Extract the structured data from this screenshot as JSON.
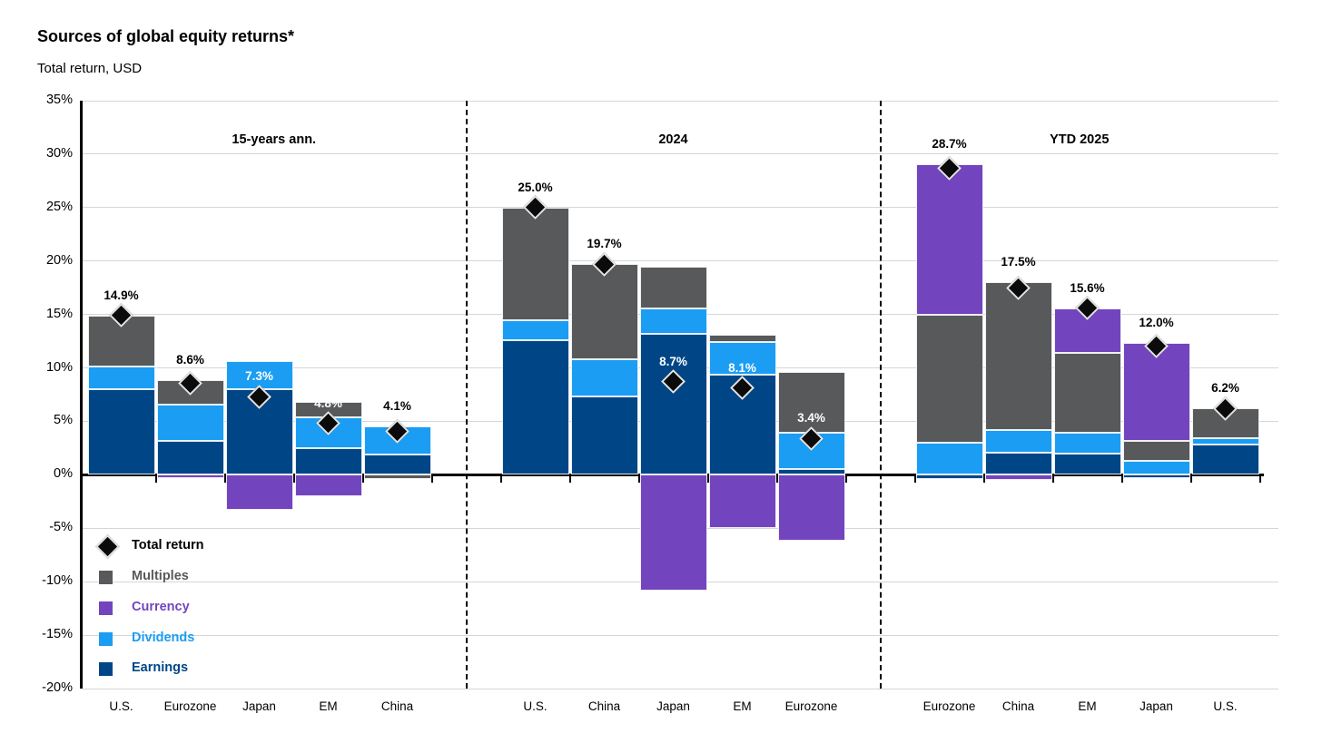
{
  "header": {
    "title": "Sources of global equity returns*",
    "subtitle": "Total return, USD"
  },
  "chart_data": {
    "type": "bar",
    "stacked": true,
    "title": "Sources of global equity returns*",
    "subtitle": "Total return, USD",
    "ylabel": "Total return, USD (%)",
    "ylim": [
      -20,
      35
    ],
    "grid": true,
    "legend_position": "bottom-left",
    "yticks": [
      {
        "label": "35%",
        "value": 35
      },
      {
        "label": "30%",
        "value": 30
      },
      {
        "label": "25%",
        "value": 25
      },
      {
        "label": "20%",
        "value": 20
      },
      {
        "label": "15%",
        "value": 15
      },
      {
        "label": "10%",
        "value": 10
      },
      {
        "label": "5%",
        "value": 5
      },
      {
        "label": "0%",
        "value": 0
      },
      {
        "label": "-5%",
        "value": -5
      },
      {
        "label": "-10%",
        "value": -10
      },
      {
        "label": "-15%",
        "value": -15
      },
      {
        "label": "-20%",
        "value": -20
      }
    ],
    "series_order": [
      "earnings",
      "dividends",
      "multiples",
      "currency"
    ],
    "series_colors": {
      "earnings": "#004687",
      "dividends": "#1B9DF3",
      "multiples": "#58595B",
      "currency": "#7245BE"
    },
    "legend": [
      {
        "name": "Total return",
        "marker": "diamond",
        "color": "#0b0b0b",
        "text_color": "#000000"
      },
      {
        "name": "Multiples",
        "marker": "square",
        "color": "#58595B",
        "text_color": "#58595B"
      },
      {
        "name": "Currency",
        "marker": "square",
        "color": "#7245BE",
        "text_color": "#7245BE"
      },
      {
        "name": "Dividends",
        "marker": "square",
        "color": "#1B9DF3",
        "text_color": "#1B9DF3"
      },
      {
        "name": "Earnings",
        "marker": "square",
        "color": "#004687",
        "text_color": "#004687"
      }
    ],
    "panels": [
      {
        "title": "15-years ann.",
        "bars": [
          {
            "category": "U.S.",
            "total": 14.9,
            "label": "14.9%",
            "label_style": "dark",
            "earnings": 8.0,
            "dividends": 2.1,
            "multiples": 4.8,
            "currency": 0
          },
          {
            "category": "Eurozone",
            "total": 8.6,
            "label": "8.6%",
            "label_style": "dark",
            "earnings": 3.2,
            "dividends": 3.4,
            "multiples": 2.3,
            "currency": -0.3
          },
          {
            "category": "Japan",
            "total": 7.3,
            "label": "7.3%",
            "label_style": "light",
            "earnings": 8.0,
            "dividends": 2.6,
            "multiples": 0,
            "currency": -3.3
          },
          {
            "category": "EM",
            "total": 4.8,
            "label": "4.8%",
            "label_style": "light",
            "earnings": 2.5,
            "dividends": 2.9,
            "multiples": 1.4,
            "currency": -2.0
          },
          {
            "category": "China",
            "total": 4.1,
            "label": "4.1%",
            "label_style": "dark",
            "earnings": 1.9,
            "dividends": 2.6,
            "multiples": -0.4,
            "currency": 0
          }
        ]
      },
      {
        "title": "2024",
        "bars": [
          {
            "category": "U.S.",
            "total": 25.0,
            "label": "25.0%",
            "label_style": "dark",
            "earnings": 12.6,
            "dividends": 1.9,
            "multiples": 10.5,
            "currency": 0
          },
          {
            "category": "China",
            "total": 19.7,
            "label": "19.7%",
            "label_style": "dark",
            "earnings": 7.3,
            "dividends": 3.5,
            "multiples": 8.9,
            "currency": 0
          },
          {
            "category": "Japan",
            "total": 8.7,
            "label": "8.7%",
            "label_style": "light",
            "earnings": 13.2,
            "dividends": 2.4,
            "multiples": 3.9,
            "currency": -10.8
          },
          {
            "category": "EM",
            "total": 8.1,
            "label": "8.1%",
            "label_style": "light",
            "earnings": 9.4,
            "dividends": 3.0,
            "multiples": 0.7,
            "currency": -5.0
          },
          {
            "category": "Eurozone",
            "total": 3.4,
            "label": "3.4%",
            "label_style": "light",
            "earnings": 0.5,
            "dividends": 3.4,
            "multiples": 5.7,
            "currency": -6.2
          }
        ]
      },
      {
        "title": "YTD 2025",
        "bars": [
          {
            "category": "Eurozone",
            "total": 28.7,
            "label": "28.7%",
            "label_style": "dark",
            "earnings": -0.4,
            "dividends": 3.0,
            "multiples": 12.0,
            "currency": 14.1
          },
          {
            "category": "China",
            "total": 17.5,
            "label": "17.5%",
            "label_style": "dark",
            "earnings": 2.1,
            "dividends": 2.1,
            "multiples": 13.8,
            "currency": -0.5
          },
          {
            "category": "EM",
            "total": 15.6,
            "label": "15.6%",
            "label_style": "dark",
            "earnings": 2.0,
            "dividends": 1.9,
            "multiples": 7.5,
            "currency": 4.2
          },
          {
            "category": "Japan",
            "total": 12.0,
            "label": "12.0%",
            "label_style": "dark",
            "earnings": -0.3,
            "dividends": 1.3,
            "multiples": 1.9,
            "currency": 9.1
          },
          {
            "category": "U.S.",
            "total": 6.2,
            "label": "6.2%",
            "label_style": "dark",
            "earnings": 2.8,
            "dividends": 0.6,
            "multiples": 2.8,
            "currency": 0
          }
        ]
      }
    ]
  },
  "colors": {
    "background": "#ffffff",
    "gridline": "#d6d6d6",
    "axis": "#000000",
    "diamond": "#0b0b0b"
  }
}
